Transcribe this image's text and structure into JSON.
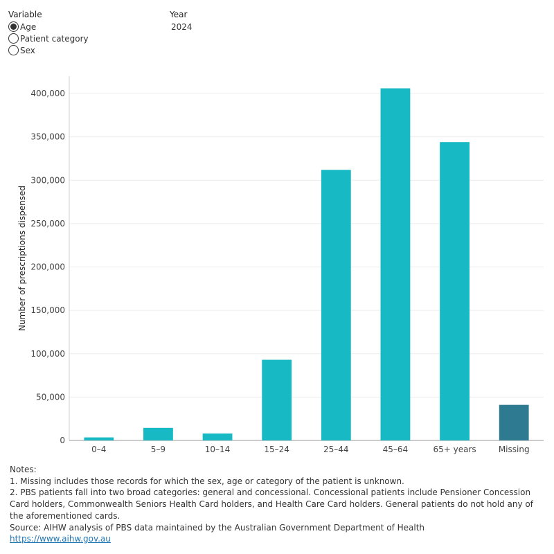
{
  "filters": {
    "variable": {
      "label": "Variable",
      "options": [
        "Age",
        "Patient category",
        "Sex"
      ],
      "selected": "Age"
    },
    "year": {
      "label": "Year",
      "value": "2024"
    }
  },
  "chart_data": {
    "type": "bar",
    "title": "",
    "xlabel": "",
    "ylabel": "Number of prescriptions dispensed",
    "ylim": [
      0,
      420000
    ],
    "yticks": [
      0,
      50000,
      100000,
      150000,
      200000,
      250000,
      300000,
      350000,
      400000
    ],
    "ytick_labels": [
      "0",
      "50,000",
      "100,000",
      "150,000",
      "200,000",
      "250,000",
      "300,000",
      "350,000",
      "400,000"
    ],
    "categories": [
      "0–4",
      "5–9",
      "10–14",
      "15–24",
      "25–44",
      "45–64",
      "65+ years",
      "Missing"
    ],
    "values": [
      3500,
      14500,
      8000,
      93000,
      312000,
      406000,
      344000,
      41000
    ],
    "colors": [
      "#16b9c4",
      "#16b9c4",
      "#16b9c4",
      "#16b9c4",
      "#16b9c4",
      "#16b9c4",
      "#16b9c4",
      "#2e7a91"
    ],
    "grid": true,
    "legend": "none"
  },
  "notes": {
    "heading": "Notes:",
    "lines": [
      "1. Missing includes those records for which the sex, age or category of the patient is unknown.",
      "2. PBS patients fall into two broad categories: general and concessional. Concessional patients include Pensioner Concession Card holders, Commonwealth Seniors Health Card holders, and Health Care Card holders. General patients do not hold any of the aforementioned cards."
    ],
    "source": "Source: AIHW analysis of PBS data maintained by the Australian Government Department of Health",
    "link": "https://www.aihw.gov.au"
  }
}
